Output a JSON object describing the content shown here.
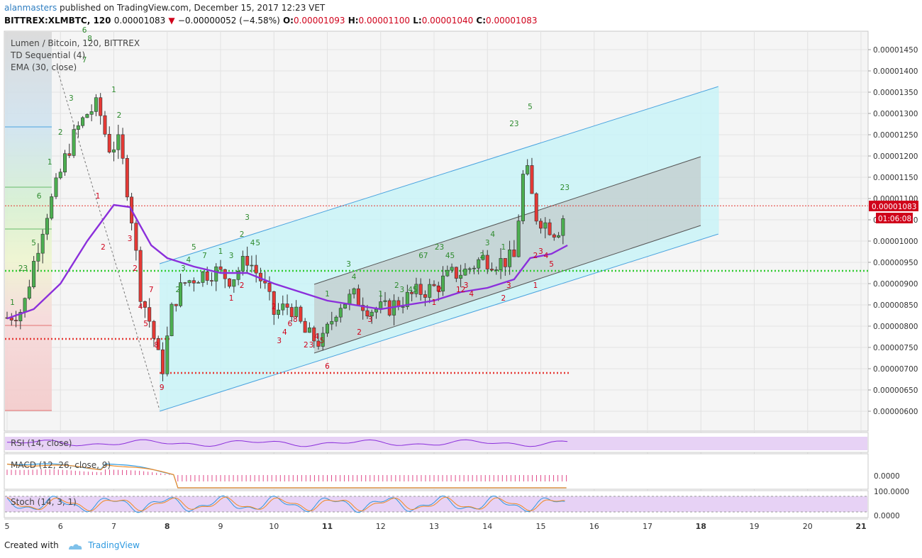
{
  "header": {
    "author": "alanmasters",
    "published_text": " published on TradingView.com, December 15, 2017 12:23 VET",
    "symbol": "BITTREX:XLMBTC, 120",
    "last": "0.00001083",
    "change": "−0.00000052 (−4.58%)",
    "o_label": "O:",
    "o": "0.00001093",
    "h_label": "H:",
    "h": "0.00001100",
    "l_label": "L:",
    "l": "0.00001040",
    "c_label": "C:",
    "c": "0.00001083"
  },
  "legend": {
    "main": "Lumen / Bitcoin, 120, BITTREX",
    "td": "TD Sequential (4)",
    "ema": "EMA (30, close)"
  },
  "price_axis": {
    "ticks": [
      "0.00001450",
      "0.00001400",
      "0.00001350",
      "0.00001300",
      "0.00001250",
      "0.00001200",
      "0.00001150",
      "0.00001100",
      "0.00001050",
      "0.00001000",
      "0.00000950",
      "0.00000900",
      "0.00000850",
      "0.00000800",
      "0.00000750",
      "0.00000700",
      "0.00000650",
      "0.00000600"
    ],
    "last_price_label": "0.00001083",
    "countdown_label": "01:06:08"
  },
  "time_axis": {
    "labels": [
      "5",
      "6",
      "7",
      "8",
      "9",
      "10",
      "11",
      "12",
      "13",
      "14",
      "15",
      "16",
      "17",
      "18",
      "19",
      "20",
      "21"
    ],
    "bold": [
      "8",
      "11",
      "18",
      "21"
    ]
  },
  "indicators": {
    "rsi": "RSI (14, close)",
    "macd": "MACD (12, 26, close, 9)",
    "macd_zero": "0.0000",
    "stoch": "Stoch (14, 3, 1)",
    "stoch_top": "100.0000",
    "stoch_bottom": "0.0000"
  },
  "colors": {
    "up": "#2e7d32",
    "down": "#c62828",
    "ema": "#8b2fdb",
    "channel": "#4aa3df",
    "channel_fill": "#c9f3f7",
    "level_green": "#33cc33",
    "level_red": "#e53935",
    "last_price": "#d0021b"
  },
  "footer": {
    "created": "Created with",
    "brand": "TradingView"
  },
  "chart_data": {
    "type": "candlestick",
    "symbol": "Lumen / Bitcoin",
    "interval": "120",
    "exchange": "BITTREX",
    "y_range": [
      5.7e-06,
      1.48e-05
    ],
    "x_range_days": [
      5,
      21
    ],
    "closes_approx": [
      [
        5.0,
        8.2e-06
      ],
      [
        5.3,
        8.4e-06
      ],
      [
        5.5,
        9.5e-06
      ],
      [
        5.7,
        1.05e-05
      ],
      [
        5.9,
        1.12e-05
      ],
      [
        6.1,
        1.2e-05
      ],
      [
        6.3,
        1.26e-05
      ],
      [
        6.5,
        1.3e-05
      ],
      [
        6.7,
        1.32e-05
      ],
      [
        6.9,
        1.22e-05
      ],
      [
        7.1,
        1.23e-05
      ],
      [
        7.3,
        1.09e-05
      ],
      [
        7.5,
        8.8e-06
      ],
      [
        7.7,
        8e-06
      ],
      [
        7.9,
        6.9e-06
      ],
      [
        8.1,
        8.5e-06
      ],
      [
        8.3,
        9e-06
      ],
      [
        8.6,
        9.2e-06
      ],
      [
        8.9,
        9.3e-06
      ],
      [
        9.2,
        9.1e-06
      ],
      [
        9.5,
        9.6e-06
      ],
      [
        9.8,
        9e-06
      ],
      [
        10.0,
        8.3e-06
      ],
      [
        10.3,
        8.5e-06
      ],
      [
        10.6,
        7.8e-06
      ],
      [
        10.9,
        7.6e-06
      ],
      [
        11.2,
        8.5e-06
      ],
      [
        11.5,
        8.7e-06
      ],
      [
        11.8,
        8.4e-06
      ],
      [
        12.1,
        8.4e-06
      ],
      [
        12.4,
        8.6e-06
      ],
      [
        12.7,
        8.8e-06
      ],
      [
        13.0,
        8.9e-06
      ],
      [
        13.3,
        9.2e-06
      ],
      [
        13.6,
        9.3e-06
      ],
      [
        13.9,
        9.6e-06
      ],
      [
        14.2,
        9.5e-06
      ],
      [
        14.5,
        9.6e-06
      ],
      [
        14.7,
        1.19e-05
      ],
      [
        14.9,
        1.06e-05
      ],
      [
        15.1,
        1.04e-05
      ],
      [
        15.3,
        1.02e-05
      ],
      [
        15.5,
        1.083e-05
      ]
    ],
    "ema_30_approx": [
      [
        5.0,
        8.18e-06
      ],
      [
        5.5,
        8.4e-06
      ],
      [
        6.0,
        9e-06
      ],
      [
        6.5,
        1e-05
      ],
      [
        7.0,
        1.085e-05
      ],
      [
        7.3,
        1.08e-05
      ],
      [
        7.7,
        9.9e-06
      ],
      [
        8.0,
        9.6e-06
      ],
      [
        8.5,
        9.4e-06
      ],
      [
        9.0,
        9.25e-06
      ],
      [
        9.5,
        9.25e-06
      ],
      [
        10.0,
        9e-06
      ],
      [
        10.5,
        8.8e-06
      ],
      [
        11.0,
        8.6e-06
      ],
      [
        11.5,
        8.5e-06
      ],
      [
        12.0,
        8.4e-06
      ],
      [
        12.5,
        8.5e-06
      ],
      [
        13.0,
        8.6e-06
      ],
      [
        13.5,
        8.8e-06
      ],
      [
        14.0,
        8.9e-06
      ],
      [
        14.5,
        9.1e-06
      ],
      [
        14.8,
        9.6e-06
      ],
      [
        15.2,
        9.7e-06
      ],
      [
        15.5,
        9.9e-06
      ]
    ],
    "horizontal_levels": [
      {
        "price": 9.3e-06,
        "style": "dotted",
        "color": "green"
      },
      {
        "price": 7.7e-06,
        "style": "dotted",
        "color": "red"
      },
      {
        "price": 6.9e-06,
        "style": "dotted",
        "color": "red"
      },
      {
        "price": 1.083e-05,
        "style": "dotted",
        "color": "red"
      }
    ]
  }
}
